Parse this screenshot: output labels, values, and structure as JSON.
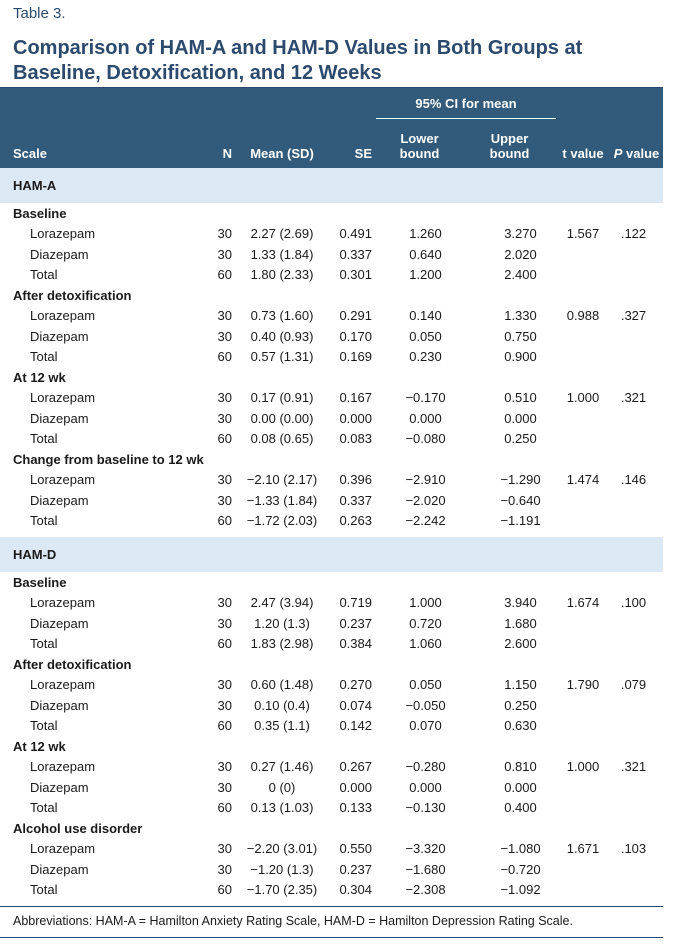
{
  "table_label": "Table 3.",
  "title": "Comparison of HAM-A and HAM-D Values in Both Groups at Baseline, Detoxification, and 12 Weeks",
  "headers": {
    "ci": "95% CI for mean",
    "scale": "Scale",
    "n": "N",
    "mean_sd": "Mean (SD)",
    "se": "SE",
    "lower": "Lower bound",
    "upper": "Upper bound",
    "t": "t value",
    "p_italic": "P",
    "p_rest": " value"
  },
  "sections": [
    {
      "label": "HAM-A",
      "groups": [
        {
          "label": "Baseline",
          "t": "1.567",
          "p": ".122",
          "rows": [
            {
              "name": "Lorazepam",
              "n": "30",
              "mean": "2.27 (2.69)",
              "se": "0.491",
              "lo": "1.260",
              "hi": "3.270"
            },
            {
              "name": "Diazepam",
              "n": "30",
              "mean": "1.33 (1.84)",
              "se": "0.337",
              "lo": "0.640",
              "hi": "2.020"
            },
            {
              "name": "Total",
              "n": "60",
              "mean": "1.80 (2.33)",
              "se": "0.301",
              "lo": "1.200",
              "hi": "2.400"
            }
          ]
        },
        {
          "label": "After detoxification",
          "t": "0.988",
          "p": ".327",
          "rows": [
            {
              "name": "Lorazepam",
              "n": "30",
              "mean": "0.73 (1.60)",
              "se": "0.291",
              "lo": "0.140",
              "hi": "1.330"
            },
            {
              "name": "Diazepam",
              "n": "30",
              "mean": "0.40 (0.93)",
              "se": "0.170",
              "lo": "0.050",
              "hi": "0.750"
            },
            {
              "name": "Total",
              "n": "60",
              "mean": "0.57 (1.31)",
              "se": "0.169",
              "lo": "0.230",
              "hi": "0.900"
            }
          ]
        },
        {
          "label": "At 12 wk",
          "t": "1.000",
          "p": ".321",
          "rows": [
            {
              "name": "Lorazepam",
              "n": "30",
              "mean": "0.17 (0.91)",
              "se": "0.167",
              "lo": "−0.170",
              "hi": "0.510"
            },
            {
              "name": "Diazepam",
              "n": "30",
              "mean": "0.00 (0.00)",
              "se": "0.000",
              "lo": "0.000",
              "hi": "0.000"
            },
            {
              "name": "Total",
              "n": "60",
              "mean": "0.08 (0.65)",
              "se": "0.083",
              "lo": "−0.080",
              "hi": "0.250"
            }
          ]
        },
        {
          "label": "Change from baseline to 12 wk",
          "t": "1.474",
          "p": ".146",
          "rows": [
            {
              "name": "Lorazepam",
              "n": "30",
              "mean": "−2.10 (2.17)",
              "se": "0.396",
              "lo": "−2.910",
              "hi": "−1.290"
            },
            {
              "name": "Diazepam",
              "n": "30",
              "mean": "−1.33 (1.84)",
              "se": "0.337",
              "lo": "−2.020",
              "hi": "−0.640"
            },
            {
              "name": "Total",
              "n": "60",
              "mean": "−1.72 (2.03)",
              "se": "0.263",
              "lo": "−2.242",
              "hi": "−1.191"
            }
          ]
        }
      ]
    },
    {
      "label": "HAM-D",
      "groups": [
        {
          "label": "Baseline",
          "t": "1.674",
          "p": ".100",
          "rows": [
            {
              "name": "Lorazepam",
              "n": "30",
              "mean": "2.47 (3.94)",
              "se": "0.719",
              "lo": "1.000",
              "hi": "3.940"
            },
            {
              "name": "Diazepam",
              "n": "30",
              "mean": "1.20 (1.3)",
              "se": "0.237",
              "lo": "0.720",
              "hi": "1.680"
            },
            {
              "name": "Total",
              "n": "60",
              "mean": "1.83 (2.98)",
              "se": "0.384",
              "lo": "1.060",
              "hi": "2.600"
            }
          ]
        },
        {
          "label": "After detoxification",
          "t": "1.790",
          "p": ".079",
          "rows": [
            {
              "name": "Lorazepam",
              "n": "30",
              "mean": "0.60 (1.48)",
              "se": "0.270",
              "lo": "0.050",
              "hi": "1.150"
            },
            {
              "name": "Diazepam",
              "n": "30",
              "mean": "0.10 (0.4)",
              "se": "0.074",
              "lo": "−0.050",
              "hi": "0.250"
            },
            {
              "name": "Total",
              "n": "60",
              "mean": "0.35 (1.1)",
              "se": "0.142",
              "lo": "0.070",
              "hi": "0.630"
            }
          ]
        },
        {
          "label": "At 12 wk",
          "t": "1.000",
          "p": ".321",
          "rows": [
            {
              "name": "Lorazepam",
              "n": "30",
              "mean": "0.27 (1.46)",
              "se": "0.267",
              "lo": "−0.280",
              "hi": "0.810"
            },
            {
              "name": "Diazepam",
              "n": "30",
              "mean": "0 (0)",
              "se": "0.000",
              "lo": "0.000",
              "hi": "0.000"
            },
            {
              "name": "Total",
              "n": "60",
              "mean": "0.13 (1.03)",
              "se": "0.133",
              "lo": "−0.130",
              "hi": "0.400"
            }
          ]
        },
        {
          "label": "Alcohol use disorder",
          "t": "1.671",
          "p": ".103",
          "rows": [
            {
              "name": "Lorazepam",
              "n": "30",
              "mean": "−2.20 (3.01)",
              "se": "0.550",
              "lo": "−3.320",
              "hi": "−1.080"
            },
            {
              "name": "Diazepam",
              "n": "30",
              "mean": "−1.20 (1.3)",
              "se": "0.237",
              "lo": "−1.680",
              "hi": "−0.720"
            },
            {
              "name": "Total",
              "n": "60",
              "mean": "−1.70 (2.35)",
              "se": "0.304",
              "lo": "−2.308",
              "hi": "−1.092"
            }
          ]
        }
      ]
    }
  ],
  "footnote": "Abbreviations: HAM-A = Hamilton Anxiety Rating Scale, HAM-D = Hamilton Depression Rating Scale."
}
